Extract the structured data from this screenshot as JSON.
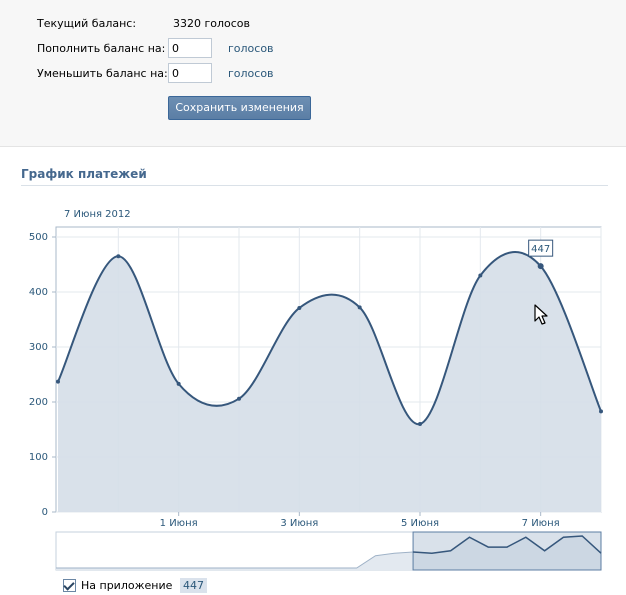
{
  "balance": {
    "current_label": "Текущий баланс:",
    "current_value": "3320 голосов",
    "topup_label": "Пополнить баланс на:",
    "topup_value": "0",
    "topup_unit": "голосов",
    "decrease_label": "Уменьшить баланс на:",
    "decrease_value": "0",
    "decrease_unit": "голосов",
    "save_label": "Сохранить изменения"
  },
  "section": {
    "title": "График платежей"
  },
  "chart_data": {
    "type": "area",
    "title": "",
    "date_caption": "7 Июня 2012",
    "ylim": [
      0,
      500
    ],
    "y_ticks": [
      "0",
      "100",
      "200",
      "300",
      "400",
      "500"
    ],
    "x_ticks": [
      "1 Июня",
      "3 Июня",
      "5 Июня",
      "7 Июня"
    ],
    "grid": true,
    "x": [
      "30 May",
      "31 May",
      "1 Jun",
      "2 Jun",
      "3 Jun",
      "4 Jun",
      "5 Jun",
      "6 Jun",
      "7 Jun",
      "8 Jun"
    ],
    "series": [
      {
        "name": "На приложение",
        "values": [
          237,
          465,
          233,
          206,
          371,
          372,
          160,
          430,
          447,
          183
        ]
      }
    ],
    "tooltip": {
      "value": "447",
      "index": 8
    },
    "series_color": "#36577c",
    "fill_color": "#d5dee8",
    "overview_values": [
      0,
      0,
      0,
      0,
      0,
      0,
      0,
      0,
      0,
      0,
      0,
      0,
      0,
      0,
      0,
      0,
      0,
      10,
      12,
      13,
      12,
      14,
      25,
      17,
      17,
      25,
      14,
      25,
      26,
      12
    ]
  },
  "legend": {
    "checked": true,
    "label": "На приложение",
    "value": "447"
  }
}
